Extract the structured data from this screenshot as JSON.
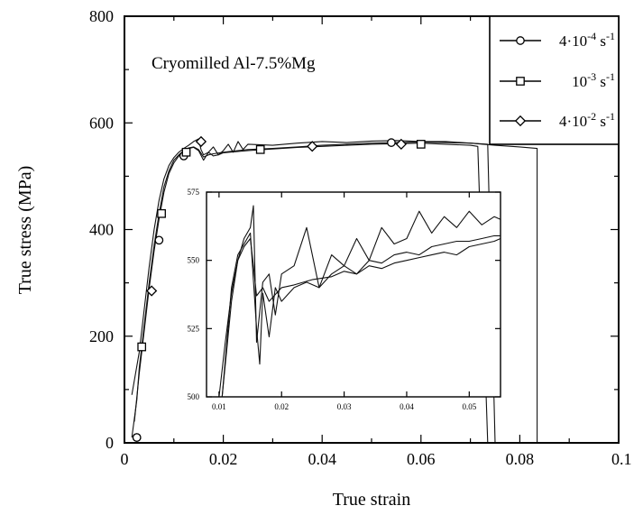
{
  "chart_data": {
    "type": "line",
    "title": "",
    "annotation": "Cryomilled Al-7.5%Mg",
    "xlabel": "True strain",
    "ylabel": "True stress (MPa)",
    "xlim": [
      0,
      0.1
    ],
    "ylim": [
      0,
      800
    ],
    "xticks": [
      0,
      0.02,
      0.04,
      0.06,
      0.08,
      0.1
    ],
    "xtick_labels": [
      "0",
      "0.02",
      "0.04",
      "0.06",
      "0.08",
      "0.1"
    ],
    "yticks": [
      0,
      200,
      400,
      600,
      800
    ],
    "ytick_labels": [
      "0",
      "200",
      "400",
      "600",
      "800"
    ],
    "grid": false,
    "legend_position": "top-right",
    "legend": [
      {
        "marker": "circle",
        "prefix": "4·10",
        "exp": "-4",
        "unit": " s",
        "unit_exp": "-1"
      },
      {
        "marker": "square",
        "prefix": "10",
        "exp": "-3",
        "unit": " s",
        "unit_exp": "-1"
      },
      {
        "marker": "diamond",
        "prefix": "4·10",
        "exp": "-2",
        "unit": " s",
        "unit_exp": "-1"
      }
    ],
    "series": [
      {
        "marker": "circle",
        "x": [
          0.0015,
          0.0025,
          0.003,
          0.004,
          0.005,
          0.006,
          0.007,
          0.008,
          0.009,
          0.01,
          0.011,
          0.012,
          0.013,
          0.014,
          0.015,
          0.016,
          0.017,
          0.018,
          0.02,
          0.025,
          0.03,
          0.035,
          0.04,
          0.045,
          0.05,
          0.055,
          0.06,
          0.065,
          0.07,
          0.0735,
          0.075
        ],
        "y": [
          10,
          80,
          140,
          220,
          300,
          370,
          430,
          480,
          510,
          530,
          540,
          548,
          553,
          555,
          550,
          536,
          540,
          542,
          545,
          550,
          552,
          555,
          558,
          560,
          562,
          563,
          564,
          563,
          562,
          560,
          0
        ],
        "marker_x": [
          0.0025,
          0.007,
          0.012,
          0.054,
          0.0025
        ],
        "marker_y": [
          10,
          380,
          538,
          563,
          10
        ]
      },
      {
        "marker": "square",
        "x": [
          0.002,
          0.003,
          0.004,
          0.005,
          0.006,
          0.007,
          0.008,
          0.009,
          0.01,
          0.011,
          0.012,
          0.013,
          0.014,
          0.015,
          0.016,
          0.017,
          0.018,
          0.019,
          0.02,
          0.025,
          0.03,
          0.035,
          0.04,
          0.045,
          0.05,
          0.055,
          0.06,
          0.065,
          0.07,
          0.0715,
          0.0735
        ],
        "y": [
          40,
          130,
          210,
          290,
          360,
          420,
          470,
          505,
          525,
          538,
          546,
          552,
          554,
          548,
          530,
          545,
          538,
          540,
          544,
          548,
          551,
          554,
          556,
          558,
          560,
          561,
          562,
          560,
          558,
          556,
          0
        ],
        "marker_x": [
          0.0035,
          0.0075,
          0.0125,
          0.0275,
          0.06
        ],
        "marker_y": [
          180,
          430,
          545,
          550,
          560
        ],
        "label": "10^-3 s^-1"
      },
      {
        "marker": "diamond",
        "x": [
          0.0015,
          0.003,
          0.004,
          0.005,
          0.006,
          0.007,
          0.008,
          0.009,
          0.01,
          0.011,
          0.012,
          0.013,
          0.014,
          0.015,
          0.0155,
          0.016,
          0.017,
          0.018,
          0.019,
          0.02,
          0.021,
          0.022,
          0.023,
          0.024,
          0.025,
          0.03,
          0.035,
          0.04,
          0.045,
          0.05,
          0.055,
          0.06,
          0.065,
          0.07,
          0.075,
          0.08,
          0.0835,
          0.0835
        ],
        "y": [
          90,
          170,
          250,
          330,
          400,
          455,
          495,
          520,
          535,
          545,
          552,
          558,
          565,
          570,
          550,
          540,
          545,
          555,
          540,
          548,
          560,
          545,
          565,
          550,
          560,
          558,
          562,
          565,
          563,
          566,
          567,
          565,
          565,
          562,
          558,
          555,
          552,
          0
        ],
        "marker_x": [
          0.0055,
          0.0155,
          0.038,
          0.056
        ],
        "marker_y": [
          285,
          565,
          556,
          560
        ]
      }
    ],
    "inset": {
      "xlim": [
        0.008,
        0.055
      ],
      "ylim": [
        500,
        575
      ],
      "xticks": [
        0.01,
        0.02,
        0.03,
        0.04,
        0.05
      ],
      "xtick_labels": [
        "0.01",
        "0.02",
        "0.03",
        "0.04",
        "0.05"
      ],
      "yticks": [
        500,
        525,
        550,
        575
      ],
      "ytick_labels": [
        "500",
        "525",
        "550",
        "575"
      ],
      "series": [
        {
          "name": "thick",
          "x": [
            0.01,
            0.011,
            0.012,
            0.013,
            0.014,
            0.015,
            0.0155,
            0.016,
            0.017,
            0.018,
            0.02,
            0.022,
            0.025,
            0.028,
            0.03,
            0.032,
            0.034,
            0.036,
            0.038,
            0.04,
            0.042,
            0.044,
            0.046,
            0.048,
            0.05,
            0.052,
            0.054,
            0.055
          ],
          "y": [
            500,
            520,
            538,
            550,
            555,
            558,
            548,
            537,
            540,
            535,
            540,
            541,
            543,
            544,
            546,
            545,
            548,
            547,
            549,
            550,
            551,
            552,
            553,
            552,
            555,
            556,
            557,
            558
          ]
        },
        {
          "name": "thin-a",
          "x": [
            0.0105,
            0.012,
            0.013,
            0.014,
            0.015,
            0.0155,
            0.016,
            0.017,
            0.018,
            0.019,
            0.02,
            0.022,
            0.024,
            0.026,
            0.028,
            0.03,
            0.032,
            0.034,
            0.036,
            0.038,
            0.04,
            0.042,
            0.044,
            0.046,
            0.048,
            0.05,
            0.052,
            0.054,
            0.055
          ],
          "y": [
            500,
            535,
            550,
            558,
            562,
            570,
            520,
            542,
            545,
            530,
            545,
            548,
            562,
            540,
            552,
            548,
            558,
            550,
            562,
            556,
            558,
            568,
            560,
            566,
            562,
            568,
            563,
            566,
            565
          ]
        },
        {
          "name": "thin-b",
          "x": [
            0.0105,
            0.012,
            0.013,
            0.014,
            0.015,
            0.016,
            0.0165,
            0.017,
            0.018,
            0.019,
            0.02,
            0.022,
            0.024,
            0.026,
            0.028,
            0.03,
            0.032,
            0.034,
            0.036,
            0.038,
            0.04,
            0.042,
            0.044,
            0.046,
            0.048,
            0.05,
            0.052,
            0.054,
            0.055
          ],
          "y": [
            500,
            540,
            552,
            556,
            560,
            525,
            512,
            538,
            522,
            540,
            535,
            540,
            542,
            540,
            545,
            548,
            545,
            550,
            549,
            552,
            553,
            552,
            555,
            556,
            557,
            557,
            558,
            559,
            559
          ]
        }
      ]
    }
  }
}
